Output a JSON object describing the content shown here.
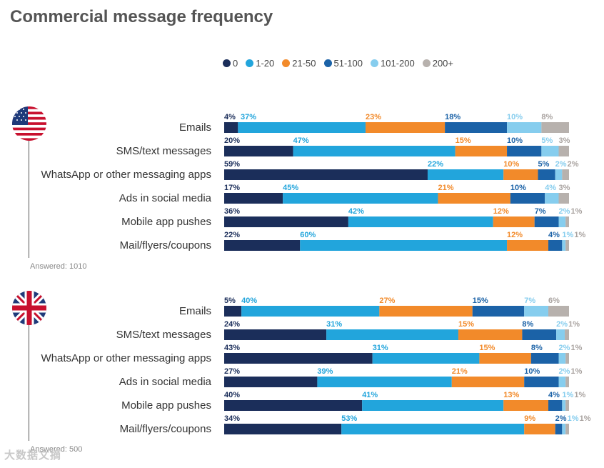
{
  "title": "Commercial message frequency",
  "colors": {
    "0": "#1b2e5a",
    "1-20": "#22a5dc",
    "21-50": "#f28a2a",
    "51-100": "#1b62a7",
    "101-200": "#86cdee",
    "200+": "#b7b1ad"
  },
  "chart_data": {
    "type": "bar",
    "orientation": "horizontal",
    "stacked": true,
    "title": "Commercial message frequency",
    "legend": [
      "0",
      "1-20",
      "21-50",
      "51-100",
      "101-200",
      "200+"
    ],
    "legend_position": "top",
    "panels": [
      {
        "country": "United States",
        "answered": "Answered: 1010",
        "categories": [
          "Emails",
          "SMS/text messages",
          "WhatsApp or other messaging apps",
          "Ads in social media",
          "Mobile app pushes",
          "Mail/flyers/coupons"
        ],
        "series": [
          {
            "name": "0",
            "values": [
              4,
              20,
              59,
              17,
              36,
              22
            ]
          },
          {
            "name": "1-20",
            "values": [
              37,
              47,
              22,
              45,
              42,
              60
            ]
          },
          {
            "name": "21-50",
            "values": [
              23,
              15,
              10,
              21,
              12,
              12
            ]
          },
          {
            "name": "51-100",
            "values": [
              18,
              10,
              5,
              10,
              7,
              4
            ]
          },
          {
            "name": "101-200",
            "values": [
              10,
              5,
              2,
              4,
              2,
              1
            ]
          },
          {
            "name": "200+",
            "values": [
              8,
              3,
              2,
              3,
              1,
              1
            ]
          }
        ]
      },
      {
        "country": "United Kingdom",
        "answered": "Answered: 500",
        "categories": [
          "Emails",
          "SMS/text messages",
          "WhatsApp or other messaging apps",
          "Ads in social media",
          "Mobile app pushes",
          "Mail/flyers/coupons"
        ],
        "series": [
          {
            "name": "0",
            "values": [
              5,
              24,
              43,
              27,
              40,
              34
            ]
          },
          {
            "name": "1-20",
            "values": [
              40,
              31,
              31,
              39,
              41,
              53
            ]
          },
          {
            "name": "21-50",
            "values": [
              27,
              15,
              15,
              21,
              13,
              9
            ]
          },
          {
            "name": "51-100",
            "values": [
              15,
              8,
              8,
              10,
              4,
              2
            ]
          },
          {
            "name": "101-200",
            "values": [
              7,
              2,
              2,
              2,
              1,
              1
            ]
          },
          {
            "name": "200+",
            "values": [
              6,
              1,
              1,
              1,
              1,
              1
            ]
          }
        ]
      }
    ]
  },
  "watermark": "大数据文摘"
}
